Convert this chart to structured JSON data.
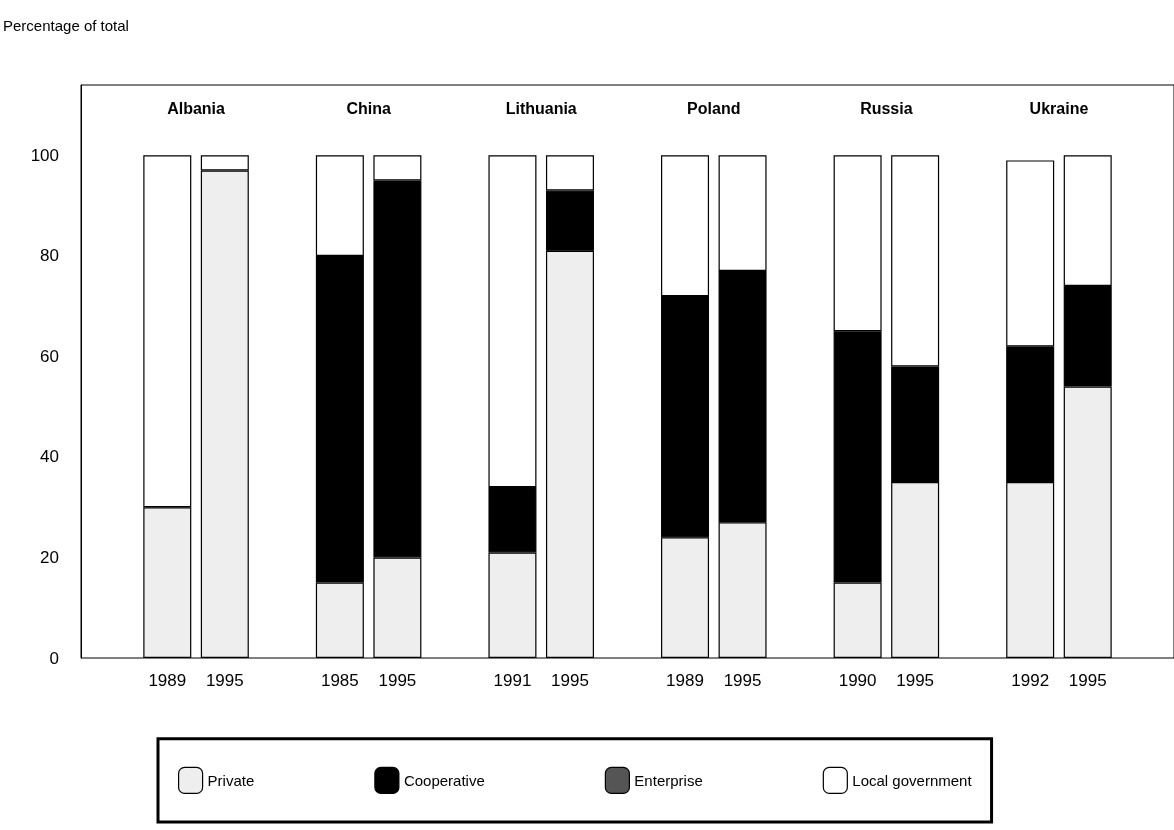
{
  "chart_data": {
    "type": "bar",
    "ylabel": "Percentage of total",
    "categories": [
      "1989",
      "1995",
      "1985",
      "1995",
      "1991",
      "1995",
      "1989",
      "1995",
      "1990",
      "1995",
      "1992",
      "1995"
    ],
    "annotations": [
      "Albania",
      "China",
      "Lithuania",
      "Poland",
      "Russia",
      "Ukraine"
    ],
    "series": [
      {
        "name": "Private",
        "color": "#eeeeee",
        "values": [
          30,
          97,
          15,
          20,
          21,
          81,
          24,
          27,
          15,
          35,
          35,
          54
        ]
      },
      {
        "name": "Cooperative",
        "color": "#000000",
        "values": [
          null,
          null,
          65,
          75,
          13,
          12,
          48,
          50,
          50,
          23,
          27,
          20
        ]
      },
      {
        "name": "Enterprise",
        "color": "#555555",
        "values": [
          null,
          null,
          null,
          null,
          null,
          null,
          null,
          null,
          null,
          null,
          null,
          null
        ]
      },
      {
        "name": "Local government",
        "color": "#ffffff",
        "values": [
          70,
          3,
          20,
          5,
          66,
          7,
          28,
          23,
          35,
          42,
          37,
          26
        ]
      }
    ],
    "stacked": true,
    "ylim": [
      0,
      114
    ],
    "yticks": [
      0,
      20,
      40,
      60,
      80,
      100
    ],
    "grid": false,
    "legend": "bottom"
  }
}
